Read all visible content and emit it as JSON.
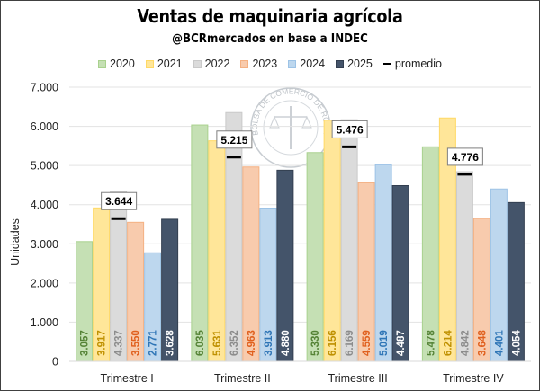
{
  "chart_data": {
    "type": "bar",
    "title": "Ventas de maquinaria agrícola",
    "subtitle": "@BCRmercados en base a INDEC",
    "xlabel": "",
    "ylabel": "Unidades",
    "ylim": [
      0,
      7000
    ],
    "yticks": [
      0,
      1000,
      2000,
      3000,
      4000,
      5000,
      6000,
      7000
    ],
    "ytick_labels": [
      "0",
      "1.000",
      "2.000",
      "3.000",
      "4.000",
      "5.000",
      "6.000",
      "7.000"
    ],
    "grid": true,
    "legend_position": "top",
    "categories": [
      "Trimestre I",
      "Trimestre II",
      "Trimestre III",
      "Trimestre IV"
    ],
    "series": [
      {
        "name": "2020",
        "values": [
          3057,
          6035,
          5330,
          5478
        ],
        "labels": [
          "3.057",
          "6.035",
          "5.330",
          "5.478"
        ],
        "fill": "#c5e0b4",
        "stroke": "#a9d18e",
        "label_color": "#548235"
      },
      {
        "name": "2021",
        "values": [
          3917,
          5631,
          6156,
          6214
        ],
        "labels": [
          "3.917",
          "5.631",
          "6.156",
          "6.214"
        ],
        "fill": "#ffe699",
        "stroke": "#ffd966",
        "label_color": "#bf9000"
      },
      {
        "name": "2022",
        "values": [
          4337,
          6352,
          6169,
          4842
        ],
        "labels": [
          "4.337",
          "6.352",
          "6.169",
          "4.842"
        ],
        "fill": "#dbdbdb",
        "stroke": "#c9c9c9",
        "label_color": "#8c8c8c"
      },
      {
        "name": "2023",
        "values": [
          3550,
          4963,
          4559,
          3648
        ],
        "labels": [
          "3.550",
          "4.963",
          "4.559",
          "3.648"
        ],
        "fill": "#f8cbad",
        "stroke": "#f4b183",
        "label_color": "#e0601e"
      },
      {
        "name": "2024",
        "values": [
          2771,
          3913,
          5019,
          4401
        ],
        "labels": [
          "2.771",
          "3.913",
          "5.019",
          "4.401"
        ],
        "fill": "#bdd7ee",
        "stroke": "#9dc3e6",
        "label_color": "#2e75b6"
      },
      {
        "name": "2025",
        "values": [
          3628,
          4880,
          4487,
          4054
        ],
        "labels": [
          "3.628",
          "4.880",
          "4.487",
          "4.054"
        ],
        "fill": "#44546a",
        "stroke": "#333f50",
        "label_color": "#ffffff"
      }
    ],
    "average": {
      "name": "promedio",
      "values": [
        3644,
        5215,
        5476,
        4776
      ],
      "labels": [
        "3.644",
        "5.215",
        "5.476",
        "4.776"
      ]
    }
  },
  "watermark": "BOLSA DE COMERCIO DE ROSARIO"
}
